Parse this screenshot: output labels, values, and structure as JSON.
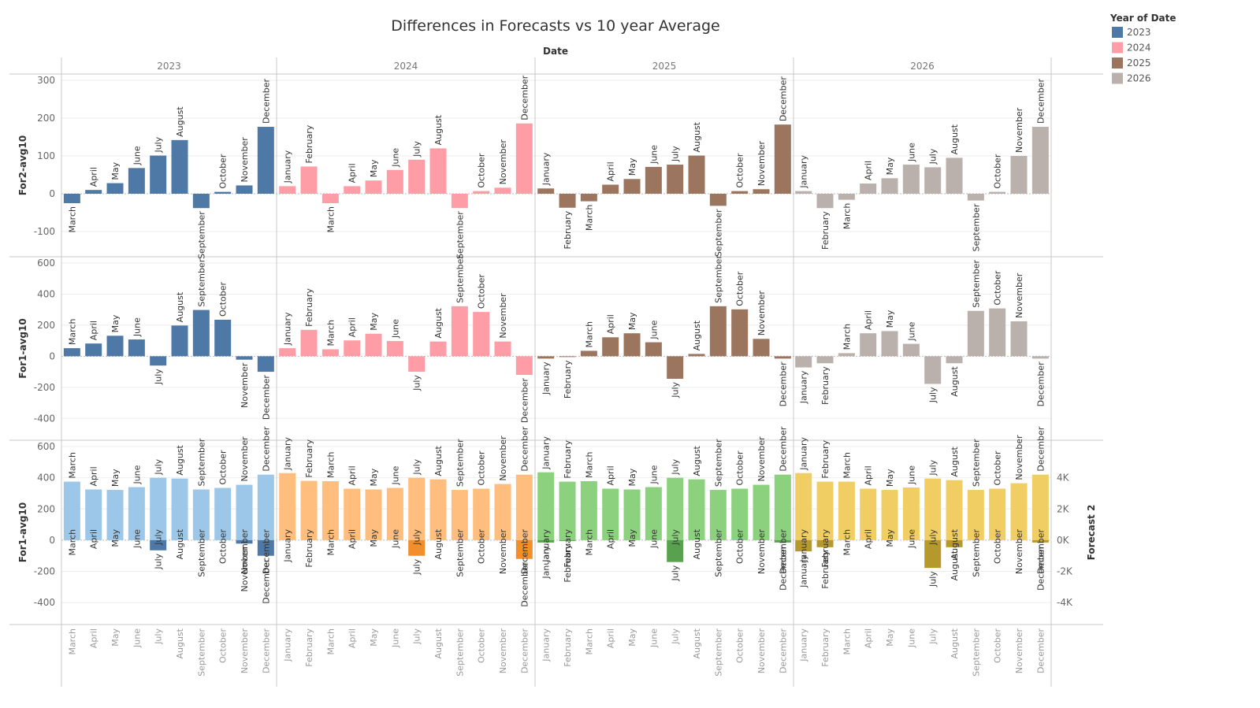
{
  "title": "Differences in Forecasts vs 10 year Average",
  "column_header": "Date",
  "legend": {
    "title": "Year of Date",
    "items": [
      {
        "label": "2023",
        "color": "#4e79a7"
      },
      {
        "label": "2024",
        "color": "#ff9da7"
      },
      {
        "label": "2025",
        "color": "#9c755f"
      },
      {
        "label": "2026",
        "color": "#bab0ac"
      }
    ]
  },
  "chart_data": {
    "type": "bar",
    "years": [
      "2023",
      "2024",
      "2025",
      "2026"
    ],
    "months": [
      [
        "March",
        "April",
        "May",
        "June",
        "July",
        "August",
        "September",
        "October",
        "November",
        "December"
      ],
      [
        "January",
        "February",
        "March",
        "April",
        "May",
        "June",
        "July",
        "August",
        "September",
        "October",
        "November",
        "December"
      ],
      [
        "January",
        "February",
        "March",
        "April",
        "May",
        "June",
        "July",
        "August",
        "September",
        "October",
        "November",
        "December"
      ],
      [
        "January",
        "February",
        "March",
        "April",
        "May",
        "June",
        "July",
        "August",
        "September",
        "October",
        "November",
        "December"
      ]
    ],
    "panels": [
      {
        "ylabel": "For2-avg10",
        "ylim": [
          -150,
          300
        ],
        "ticks": [
          -100,
          0,
          100,
          200,
          300
        ],
        "values": [
          [
            -25,
            10,
            28,
            68,
            101,
            142,
            -38,
            5,
            22,
            177
          ],
          [
            20,
            72,
            -25,
            20,
            35,
            63,
            90,
            120,
            -38,
            7,
            16,
            186
          ],
          [
            14,
            -37,
            -20,
            24,
            39,
            71,
            77,
            101,
            -32,
            7,
            12,
            183
          ],
          [
            7,
            -38,
            -16,
            27,
            41,
            77,
            70,
            95,
            -18,
            5,
            100,
            177
          ]
        ]
      },
      {
        "ylabel": "For1-avg10",
        "ylim": [
          -500,
          600
        ],
        "ticks": [
          -400,
          -200,
          0,
          200,
          400,
          600
        ],
        "values": [
          [
            52,
            82,
            132,
            108,
            -60,
            198,
            298,
            235,
            -22,
            -100
          ],
          [
            52,
            170,
            45,
            102,
            145,
            98,
            -100,
            95,
            322,
            285,
            95,
            -120
          ],
          [
            -15,
            -5,
            35,
            122,
            148,
            90,
            -145,
            15,
            322,
            302,
            112,
            -15
          ],
          [
            -72,
            -45,
            20,
            148,
            162,
            80,
            -178,
            -45,
            292,
            308,
            225,
            -15
          ]
        ]
      },
      {
        "ylabel": "For1-avg10",
        "y2label": "Forecast 2",
        "ylim": [
          -500,
          600
        ],
        "ticks": [
          -400,
          -200,
          0,
          200,
          400,
          600
        ],
        "y2ticks": [
          "4K",
          "2K",
          "0K",
          "-2K",
          "-4K"
        ],
        "colors_pos": [
          "#9dc7e8",
          "#ffbe7d",
          "#8cd17d",
          "#f1ce63"
        ],
        "colors_neg": [
          "#4e79a7",
          "#f28e2b",
          "#59a14f",
          "#b6992d"
        ],
        "values": [
          [
            52,
            82,
            132,
            108,
            -65,
            198,
            298,
            235,
            -22,
            -100
          ],
          [
            52,
            170,
            45,
            102,
            145,
            98,
            -100,
            95,
            322,
            285,
            95,
            -120
          ],
          [
            -15,
            -5,
            35,
            122,
            148,
            90,
            -140,
            15,
            322,
            302,
            112,
            -15
          ],
          [
            -72,
            -45,
            20,
            148,
            162,
            80,
            -178,
            -45,
            292,
            308,
            225,
            -15
          ]
        ],
        "forecast2": [
          [
            375,
            325,
            322,
            340,
            400,
            395,
            325,
            335,
            355,
            420
          ],
          [
            430,
            380,
            378,
            330,
            325,
            335,
            400,
            390,
            322,
            330,
            360,
            420
          ],
          [
            435,
            375,
            378,
            330,
            325,
            340,
            400,
            390,
            322,
            330,
            355,
            420
          ],
          [
            430,
            375,
            375,
            330,
            322,
            338,
            395,
            385,
            322,
            330,
            365,
            420
          ]
        ]
      }
    ]
  }
}
